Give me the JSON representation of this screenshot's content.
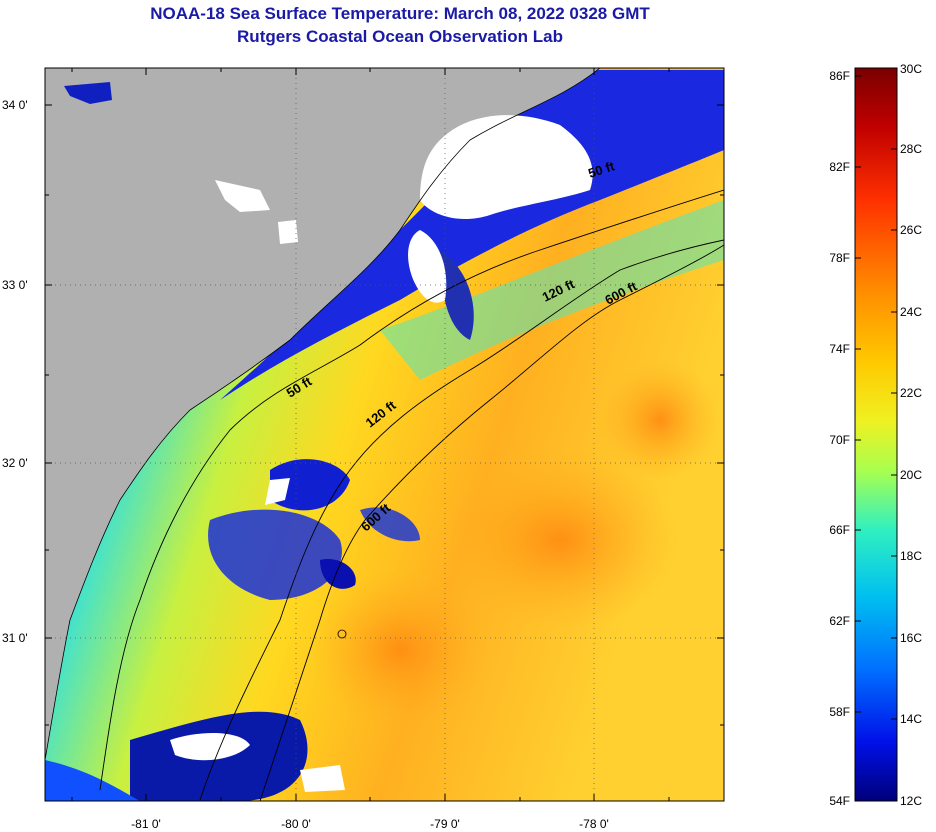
{
  "title": "NOAA-18 Sea Surface Temperature:  March 08, 2022 0328 GMT",
  "subtitle": "Rutgers Coastal Ocean Observation Lab",
  "map": {
    "lon_labels": [
      "-81 0'",
      "-80 0'",
      "-79 0'",
      "-78 0'"
    ],
    "lat_labels": [
      "34 0'",
      "33 0'",
      "32 0'",
      "31 0'"
    ],
    "contour_labels": {
      "c50_north": "50 ft",
      "c120_north": "120 ft",
      "c600_north": "600 ft",
      "c50_south": "50 ft",
      "c120_south": "120 ft",
      "c600_south": "600 ft"
    },
    "land_color": "#b0b0b0",
    "cloud_color": "#ffffff"
  },
  "colorbar": {
    "fahrenheit_labels": [
      "86F",
      "82F",
      "78F",
      "74F",
      "70F",
      "66F",
      "62F",
      "58F",
      "54F"
    ],
    "celsius_labels": [
      "30C",
      "28C",
      "26C",
      "24C",
      "22C",
      "20C",
      "18C",
      "16C",
      "14C",
      "12C"
    ],
    "colors": [
      "#7a0000",
      "#d40000",
      "#ff4a00",
      "#ff9a00",
      "#ffd800",
      "#e8ff20",
      "#8cff70",
      "#20f0d0",
      "#00b8f0",
      "#0060ff",
      "#0010e0",
      "#00008a"
    ]
  }
}
